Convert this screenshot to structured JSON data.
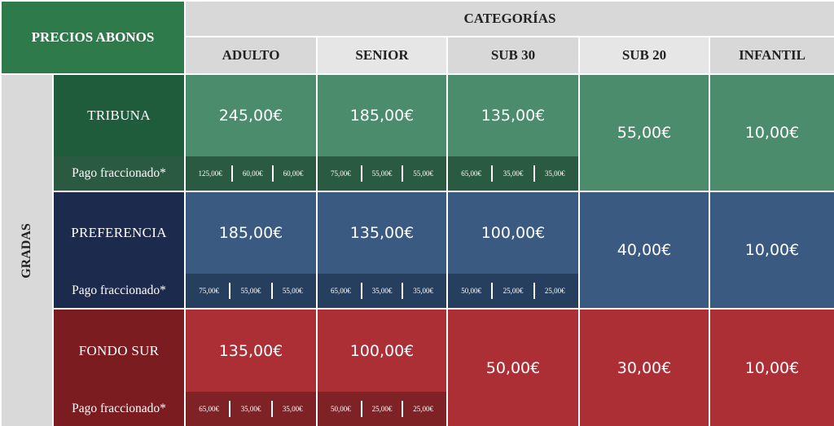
{
  "header": {
    "title": "PRECIOS ABONOS",
    "categorias": "CATEGORÍAS",
    "columns": [
      "ADULTO",
      "SENIOR",
      "SUB 30",
      "SUB 20",
      "INFANTIL"
    ]
  },
  "gradas_label": "GRADAS",
  "rows": [
    {
      "name": "TRIBUNA",
      "pago_label": "Pago fraccionado*",
      "adulto": "245,00€",
      "senior": "185,00€",
      "sub30": "135,00€",
      "sub20": "55,00€",
      "infantil": "10,00€",
      "frac_adulto": [
        "125,00€",
        "60,00€",
        "60,00€"
      ],
      "frac_senior": [
        "75,00€",
        "55,00€",
        "55,00€"
      ],
      "frac_sub30": [
        "65,00€",
        "35,00€",
        "35,00€"
      ]
    },
    {
      "name": "PREFERENCIA",
      "pago_label": "Pago fraccionado*",
      "adulto": "185,00€",
      "senior": "135,00€",
      "sub30": "100,00€",
      "sub20": "40,00€",
      "infantil": "10,00€",
      "frac_adulto": [
        "75,00€",
        "55,00€",
        "55,00€"
      ],
      "frac_senior": [
        "65,00€",
        "35,00€",
        "35,00€"
      ],
      "frac_sub30": [
        "50,00€",
        "25,00€",
        "25,00€"
      ]
    },
    {
      "name": "FONDO SUR",
      "pago_label": "Pago fraccionado*",
      "adulto": "135,00€",
      "senior": "100,00€",
      "sub30": "50,00€",
      "sub20": "30,00€",
      "infantil": "10,00€",
      "frac_adulto": [
        "65,00€",
        "35,00€",
        "35,00€"
      ],
      "frac_senior": [
        "50,00€",
        "25,00€",
        "25,00€"
      ]
    }
  ],
  "colors": {
    "header_green": "#2e7a4b",
    "header_grey": "#d8d8d8",
    "header_grey_light": "#e6e6e6",
    "gradas_grey": "#d9d9d9",
    "tribuna_name": "#1f5c3b",
    "tribuna_price": "#4a8c6b",
    "tribuna_pago": "#2a5a42",
    "preferencia_name": "#1c2a4e",
    "preferencia_price": "#3a5a82",
    "preferencia_pago": "#273f5e",
    "fondo_name": "#7a1c20",
    "fondo_price": "#ac2f36",
    "fondo_pago": "#7e2226"
  }
}
